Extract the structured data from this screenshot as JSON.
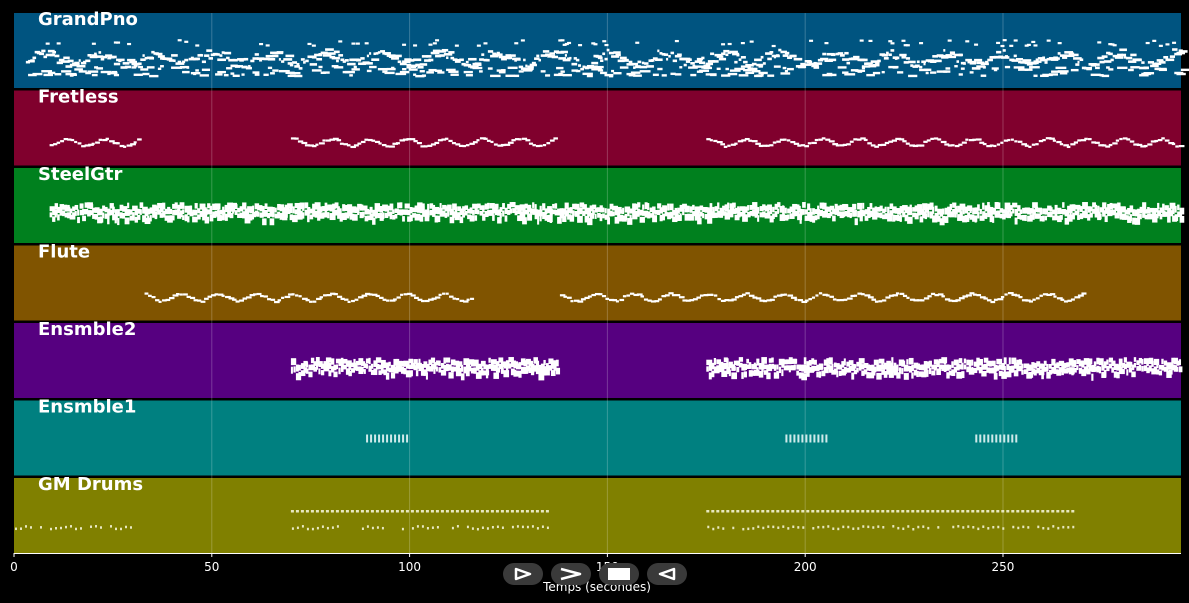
{
  "chart_data": {
    "type": "piano-roll",
    "xlabel": "Temps (secondes)",
    "xlim": [
      0,
      295
    ],
    "x_ticks": [
      0,
      50,
      100,
      150,
      200,
      250
    ],
    "grid": true,
    "tracks": [
      {
        "name": "GrandPno",
        "color": "#005480",
        "segments": [
          [
            3,
            295
          ]
        ],
        "style": "dense"
      },
      {
        "name": "Fretless",
        "color": "#80002d",
        "segments": [
          [
            9,
            32
          ],
          [
            70,
            137
          ],
          [
            175,
            295
          ]
        ],
        "style": "line"
      },
      {
        "name": "SteelGtr",
        "color": "#00801e",
        "segments": [
          [
            9,
            295
          ]
        ],
        "style": "block"
      },
      {
        "name": "Flute",
        "color": "#805400",
        "segments": [
          [
            33,
            116
          ],
          [
            138,
            270
          ]
        ],
        "style": "line"
      },
      {
        "name": "Ensmble2",
        "color": "#560080",
        "segments": [
          [
            70,
            137
          ],
          [
            175,
            295
          ]
        ],
        "style": "block"
      },
      {
        "name": "Ensmble1",
        "color": "#008080",
        "segments": [
          [
            89,
            100
          ],
          [
            195,
            206
          ],
          [
            243,
            254
          ]
        ],
        "style": "ticks"
      },
      {
        "name": "GM Drums",
        "color": "#808000",
        "segments": [
          [
            0,
            32
          ],
          [
            70,
            135
          ],
          [
            175,
            268
          ]
        ],
        "style": "drums"
      }
    ]
  },
  "controls": [
    {
      "name": "play-forward-button",
      "icon": "play-icon"
    },
    {
      "name": "next-button",
      "icon": "chevron-right-icon"
    },
    {
      "name": "stop-button",
      "icon": "stop-icon"
    },
    {
      "name": "rewind-button",
      "icon": "play-back-icon"
    }
  ]
}
